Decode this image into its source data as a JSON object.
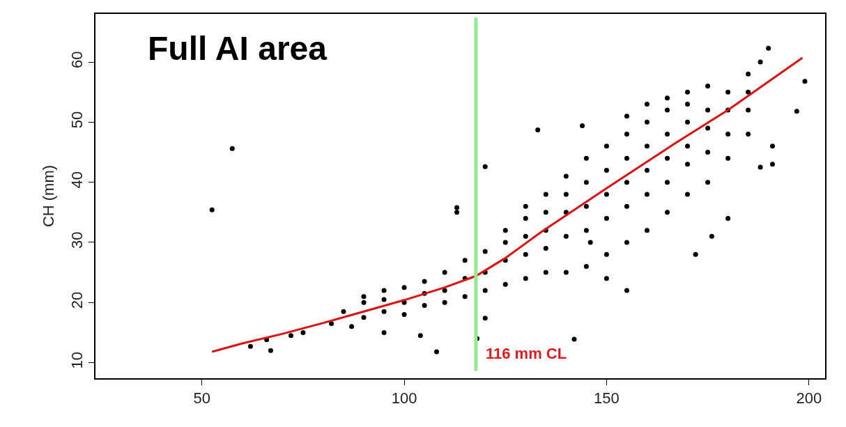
{
  "chart_data": {
    "type": "scatter",
    "ylabel": "CH (mm)",
    "annotations": [
      "Full AI area"
    ],
    "xlim": [
      23.7,
      204
    ],
    "ylim": [
      7.4,
      68
    ],
    "xticks": [
      50,
      100,
      150,
      200
    ],
    "yticks": [
      10,
      20,
      30,
      40,
      50,
      60
    ],
    "marker": "circle",
    "ref_lines": [
      {
        "axis": "x",
        "value": 117.7,
        "label": "116 mm CL",
        "color": "#90ee90"
      }
    ],
    "series": [
      {
        "color": "#000000",
        "x": [
          52.5,
          57.5,
          62,
          67,
          66,
          108,
          118,
          142,
          133,
          144,
          190,
          188,
          199,
          197,
          191,
          191,
          188,
          180,
          176,
          172,
          155,
          150,
          146,
          120,
          113,
          113,
          120,
          104,
          95,
          87,
          82,
          85,
          72,
          75,
          90,
          90,
          90,
          95,
          95,
          95,
          100,
          100,
          100,
          105,
          105,
          105,
          110,
          110,
          110,
          115,
          115,
          115,
          120,
          120,
          120,
          125,
          125,
          125,
          125,
          130,
          130,
          130,
          130,
          130,
          135,
          135,
          135,
          135,
          135,
          140,
          140,
          140,
          140,
          140,
          145,
          145,
          145,
          145,
          145,
          150,
          150,
          150,
          150,
          150,
          155,
          155,
          155,
          155,
          155,
          155,
          160,
          160,
          160,
          160,
          160,
          160,
          165,
          165,
          165,
          165,
          165,
          165,
          170,
          170,
          170,
          170,
          170,
          170,
          175,
          175,
          175,
          175,
          175,
          180,
          180,
          180,
          180,
          185,
          185,
          185,
          185
        ],
        "values": [
          35.4,
          45.6,
          12.7,
          12,
          13.8,
          11.8,
          14,
          13.9,
          48.7,
          49.4,
          62.3,
          60,
          56.8,
          51.8,
          46,
          43,
          42.5,
          34,
          31,
          28,
          22,
          24,
          30,
          42.6,
          35.8,
          35,
          17.4,
          14.5,
          15,
          16,
          16.5,
          18.5,
          14.5,
          15,
          17.5,
          20,
          21,
          18.5,
          20.5,
          22,
          18,
          20,
          22.5,
          19.5,
          21.5,
          23.5,
          20,
          22,
          25,
          21,
          24,
          27,
          22,
          25,
          28.5,
          23,
          27,
          30,
          32,
          24,
          28,
          31,
          34,
          36,
          25,
          29,
          32,
          35,
          38,
          25,
          31,
          35,
          38,
          41,
          26,
          32,
          36,
          40,
          44,
          28,
          34,
          38,
          42,
          46,
          30,
          36,
          40,
          44,
          48,
          51,
          32,
          38,
          42,
          46,
          50,
          53,
          35,
          40,
          44,
          48,
          52,
          54,
          38,
          43,
          46,
          50,
          53,
          55,
          40,
          45,
          49,
          52,
          56,
          44,
          48,
          52,
          55,
          48,
          52,
          55,
          58
        ]
      },
      {
        "type": "line",
        "color": "#dd1111",
        "marker": "none",
        "x": [
          52.5,
          60,
          70,
          80,
          90,
          100,
          110,
          117.7,
          125,
          134,
          150,
          167,
          180,
          198.4
        ],
        "values": [
          11.8,
          13.2,
          14.8,
          16.6,
          18.5,
          20.4,
          22.5,
          24.4,
          27.4,
          31.8,
          39,
          46.5,
          52,
          60.7
        ]
      }
    ]
  }
}
